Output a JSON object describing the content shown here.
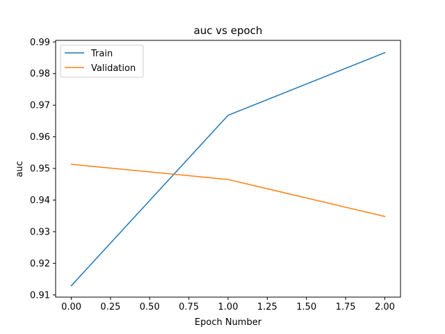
{
  "chart_data": {
    "type": "line",
    "title": "auc vs epoch",
    "xlabel": "Epoch Number",
    "ylabel": "auc",
    "x": [
      0,
      1,
      2
    ],
    "xlim": [
      -0.1,
      2.1
    ],
    "ylim": [
      0.9093,
      0.9905
    ],
    "xticks": [
      0.0,
      0.25,
      0.5,
      0.75,
      1.0,
      1.25,
      1.5,
      1.75,
      2.0
    ],
    "xtick_labels": [
      "0.00",
      "0.25",
      "0.50",
      "0.75",
      "1.00",
      "1.25",
      "1.50",
      "1.75",
      "2.00"
    ],
    "yticks": [
      0.91,
      0.92,
      0.93,
      0.94,
      0.95,
      0.96,
      0.97,
      0.98,
      0.99
    ],
    "ytick_labels": [
      "0.91",
      "0.92",
      "0.93",
      "0.94",
      "0.95",
      "0.96",
      "0.97",
      "0.98",
      "0.99"
    ],
    "grid": false,
    "legend_position": "upper-left",
    "series": [
      {
        "name": "Train",
        "color": "#1f77b4",
        "values": [
          0.9129,
          0.9668,
          0.9866
        ]
      },
      {
        "name": "Validation",
        "color": "#ff7f0e",
        "values": [
          0.9513,
          0.9465,
          0.9348
        ]
      }
    ]
  }
}
